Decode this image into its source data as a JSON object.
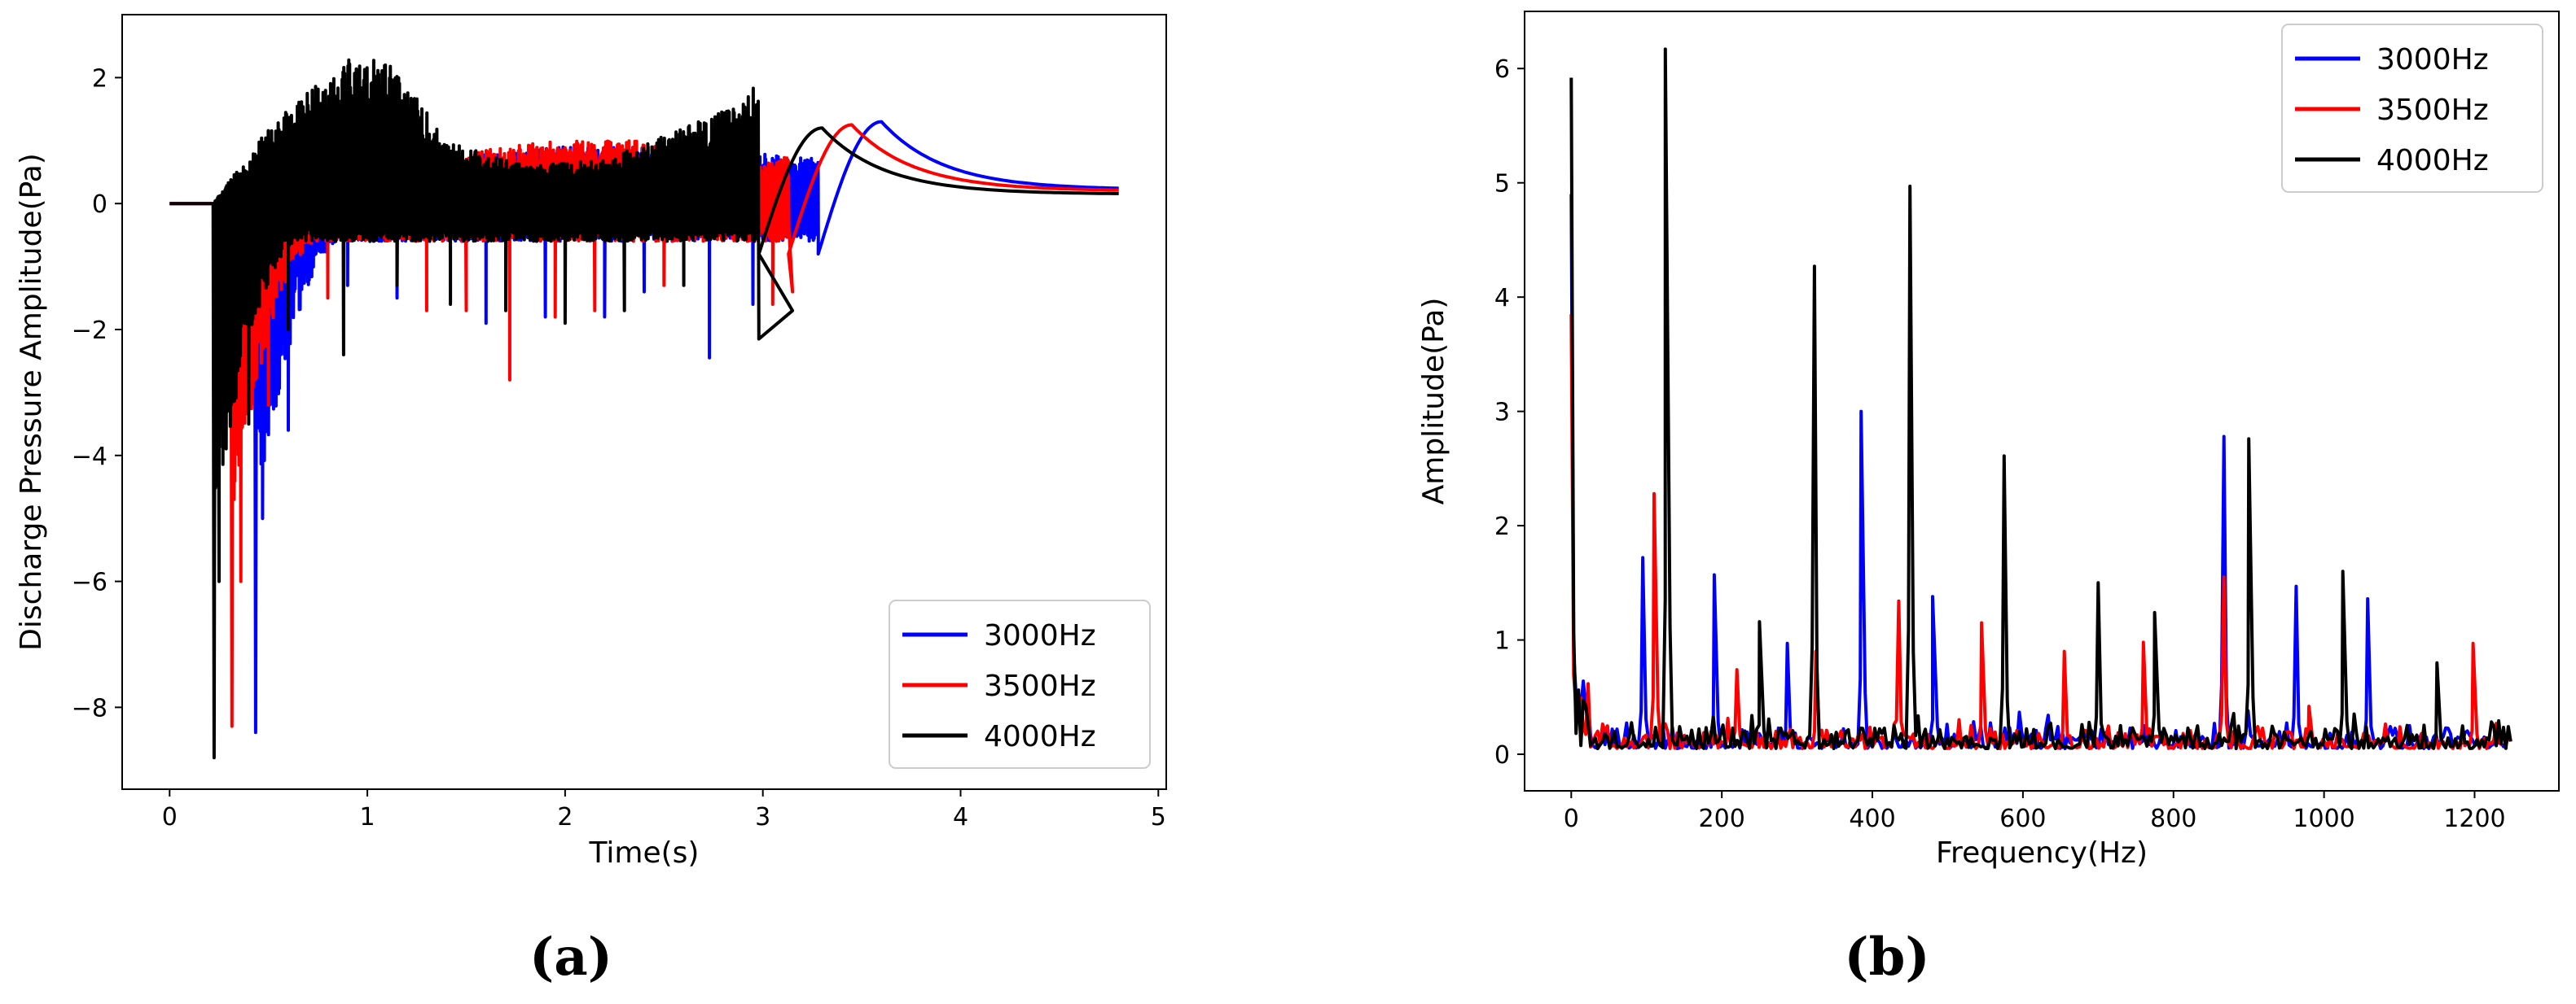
{
  "colors": {
    "s3000": "#0000ff",
    "s3500": "#ff0000",
    "s4000": "#000000"
  },
  "chart_data": [
    {
      "type": "line",
      "panel_label": "(a)",
      "xlabel": "Time(s)",
      "ylabel": "Discharge Pressure Amplitude(Pa)",
      "xlim": [
        -0.24,
        5.04
      ],
      "ylim": [
        -9.3,
        3.0
      ],
      "xticks": [
        0,
        1,
        2,
        3,
        4,
        5
      ],
      "yticks": [
        -8,
        -6,
        -4,
        -2,
        0,
        2
      ],
      "legend_position": "lower-right",
      "series": [
        {
          "name": "3000Hz",
          "color": "#0000ff",
          "onset": 0.43,
          "dip": -8.4,
          "bump_peak_t": 3.6,
          "bump_peak": 1.3,
          "end_value": 0.22,
          "spikes": [
            [
              0.47,
              -5.0
            ],
            [
              0.6,
              -3.6
            ],
            [
              0.9,
              -1.3
            ],
            [
              1.15,
              -1.5
            ],
            [
              1.6,
              -1.9
            ],
            [
              1.9,
              -1.8
            ],
            [
              2.2,
              -1.8
            ],
            [
              2.4,
              -1.4
            ],
            [
              2.73,
              -2.45
            ],
            [
              2.95,
              -1.6
            ]
          ],
          "upper_env": [
            [
              0.45,
              0
            ],
            [
              0.7,
              0.6
            ],
            [
              1.0,
              0.9
            ],
            [
              1.5,
              0.75
            ],
            [
              2.0,
              0.9
            ],
            [
              2.5,
              0.9
            ],
            [
              3.0,
              0.8
            ],
            [
              3.3,
              0.7
            ]
          ]
        },
        {
          "name": "3500Hz",
          "color": "#ff0000",
          "onset": 0.31,
          "dip": -8.3,
          "bump_peak_t": 3.45,
          "bump_peak": 1.25,
          "end_value": 0.2,
          "spikes": [
            [
              0.36,
              -6.0
            ],
            [
              0.5,
              -3.2
            ],
            [
              0.8,
              -1.5
            ],
            [
              1.3,
              -1.7
            ],
            [
              1.5,
              -1.7
            ],
            [
              1.72,
              -2.8
            ],
            [
              1.95,
              -1.8
            ],
            [
              2.15,
              -1.7
            ],
            [
              2.5,
              -1.3
            ],
            [
              3.05,
              -1.6
            ],
            [
              3.15,
              -1.4
            ]
          ],
          "upper_env": [
            [
              0.33,
              0
            ],
            [
              0.6,
              0.7
            ],
            [
              1.0,
              0.9
            ],
            [
              1.5,
              0.8
            ],
            [
              1.8,
              0.95
            ],
            [
              2.0,
              1.0
            ],
            [
              2.5,
              1.0
            ],
            [
              3.0,
              0.6
            ],
            [
              3.2,
              0.9
            ]
          ]
        },
        {
          "name": "4000Hz",
          "color": "#000000",
          "onset": 0.22,
          "dip": -8.8,
          "bump_peak_t": 3.3,
          "bump_peak": 1.2,
          "end_value": 0.15,
          "spikes": [
            [
              0.25,
              -6.0
            ],
            [
              0.4,
              -3.5
            ],
            [
              0.6,
              -2.0
            ],
            [
              0.88,
              -2.4
            ],
            [
              1.15,
              -1.3
            ],
            [
              1.42,
              -1.6
            ],
            [
              1.7,
              -1.7
            ],
            [
              2.0,
              -1.9
            ],
            [
              2.3,
              -1.7
            ],
            [
              2.6,
              -1.3
            ],
            [
              2.98,
              -2.15
            ],
            [
              3.15,
              -1.7
            ]
          ],
          "upper_env": [
            [
              0.22,
              0
            ],
            [
              0.5,
              1.2
            ],
            [
              0.7,
              1.8
            ],
            [
              0.9,
              2.4
            ],
            [
              1.0,
              2.2
            ],
            [
              1.05,
              2.5
            ],
            [
              1.2,
              1.9
            ],
            [
              1.4,
              1.0
            ],
            [
              1.8,
              0.6
            ],
            [
              2.2,
              0.7
            ],
            [
              2.6,
              1.2
            ],
            [
              2.9,
              1.6
            ],
            [
              3.0,
              2.1
            ],
            [
              3.1,
              1.6
            ],
            [
              3.2,
              1.0
            ]
          ]
        }
      ]
    },
    {
      "type": "line",
      "panel_label": "(b)",
      "xlabel": "Frequency(Hz)",
      "ylabel": "Amplitude(Pa)",
      "xlim": [
        -62,
        1312
      ],
      "ylim": [
        -0.32,
        6.5
      ],
      "xticks": [
        0,
        200,
        400,
        600,
        800,
        1000,
        1200
      ],
      "yticks": [
        0,
        1,
        2,
        3,
        4,
        5,
        6
      ],
      "legend_position": "upper-right",
      "series": [
        {
          "name": "3000Hz",
          "color": "#0000ff",
          "peaks": [
            [
              0,
              4.9
            ],
            [
              95,
              1.72
            ],
            [
              190,
              1.57
            ],
            [
              287,
              0.97
            ],
            [
              385,
              3.0
            ],
            [
              480,
              1.38
            ],
            [
              867,
              2.78
            ],
            [
              963,
              1.47
            ],
            [
              1058,
              1.36
            ]
          ]
        },
        {
          "name": "3500Hz",
          "color": "#ff0000",
          "peaks": [
            [
              0,
              3.85
            ],
            [
              110,
              2.28
            ],
            [
              220,
              0.74
            ],
            [
              325,
              0.9
            ],
            [
              435,
              1.34
            ],
            [
              545,
              1.15
            ],
            [
              655,
              0.9
            ],
            [
              760,
              0.98
            ],
            [
              867,
              1.55
            ],
            [
              980,
              0.42
            ],
            [
              1198,
              0.97
            ]
          ]
        },
        {
          "name": "4000Hz",
          "color": "#000000",
          "peaks": [
            [
              0,
              5.92
            ],
            [
              125,
              6.17
            ],
            [
              250,
              1.16
            ],
            [
              323,
              4.27
            ],
            [
              450,
              4.97
            ],
            [
              575,
              2.61
            ],
            [
              700,
              1.5
            ],
            [
              775,
              1.24
            ],
            [
              900,
              2.76
            ],
            [
              1025,
              1.6
            ],
            [
              1150,
              0.8
            ]
          ]
        }
      ]
    }
  ]
}
